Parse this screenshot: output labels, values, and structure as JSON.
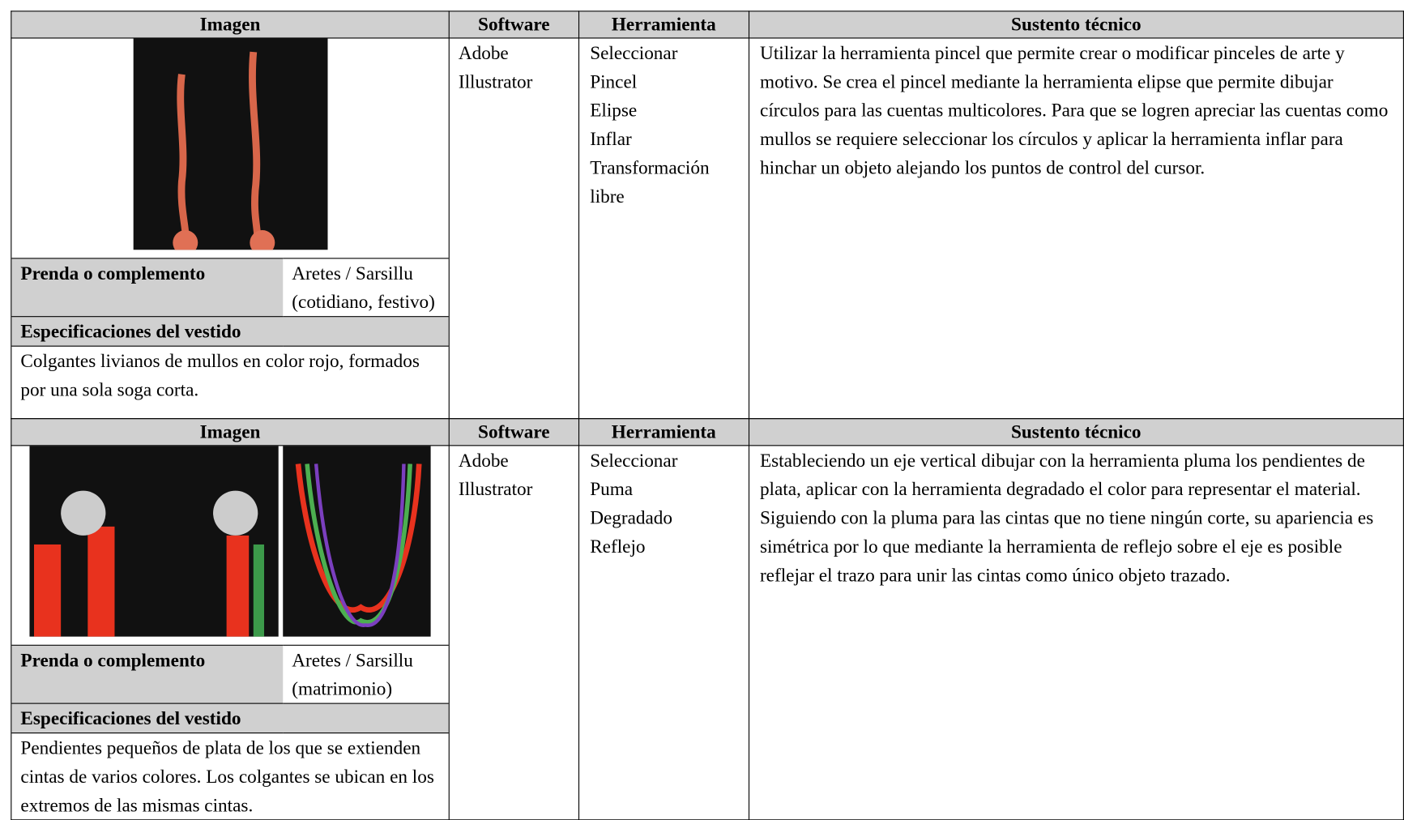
{
  "sections": [
    {
      "headers": [
        "Imagen",
        "Software",
        "Herramienta",
        "Sustento técnico"
      ],
      "prenda_label": "Prenda o complemento",
      "prenda_value": "Aretes / Sarsillu (cotidiano, festivo)",
      "specs_label": "Especificaciones del vestido",
      "specs_text": "Colgantes livianos de mullos en color rojo, formados por una sola soga corta.",
      "software": "Adobe Illustrator",
      "tools": [
        "Seleccionar",
        "Pincel",
        "Elipse",
        "Inflar",
        "Transformación libre"
      ],
      "sustento": "Utilizar la herramienta pincel que permite crear o modificar pinceles de arte y motivo. Se crea el pincel mediante la herramienta  elipse que permite dibujar círculos para las cuentas multicolores. Para que se logren apreciar las cuentas como mullos se requiere seleccionar los círculos y aplicar la herramienta inflar para hinchar un objeto alejando los puntos de control del cursor."
    },
    {
      "headers": [
        "Imagen",
        "Software",
        "Herramienta",
        "Sustento técnico"
      ],
      "prenda_label": "Prenda o complemento",
      "prenda_value": "Aretes / Sarsillu (matrimonio)",
      "specs_label": "Especificaciones del vestido",
      "specs_text": "Pendientes pequeños de plata de los que se extienden cintas de varios colores. Los colgantes se ubican en los extremos de las mismas cintas.",
      "software": "Adobe Illustrator",
      "tools": [
        "Seleccionar",
        "Puma",
        "Degradado",
        "Reflejo"
      ],
      "sustento": "Estableciendo un eje vertical dibujar con la herramienta pluma los pendientes de plata, aplicar con la herramienta degradado el color para representar el material. Siguiendo con la pluma para las cintas que no tiene ningún corte, su apariencia es simétrica por lo que mediante la herramienta de reflejo sobre el eje es posible reflejar el trazo para unir las cintas como único objeto trazado."
    }
  ]
}
